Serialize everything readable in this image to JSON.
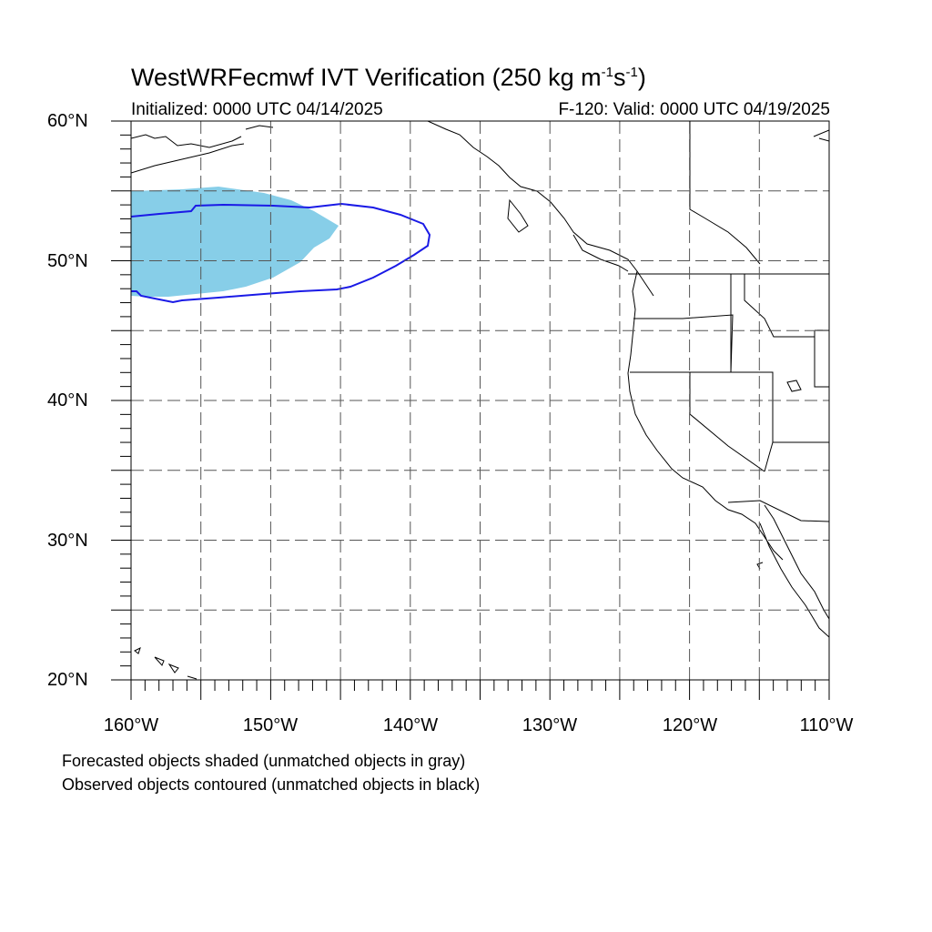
{
  "title": {
    "prefix": "WestWRFecmwf IVT Verification (250 kg m",
    "exp1": "-1",
    "mid": "s",
    "exp2": "-1",
    "suffix": ")"
  },
  "init_text": "Initialized: 0000 UTC 04/14/2025",
  "valid_text": "F-120: Valid: 0000 UTC 04/19/2025",
  "y_tick_labels": [
    "60°N",
    "50°N",
    "40°N",
    "30°N",
    "20°N"
  ],
  "x_tick_labels": [
    "160°W",
    "150°W",
    "140°W",
    "130°W",
    "120°W",
    "110°W"
  ],
  "footnotes": [
    "Forecasted objects shaded (unmatched objects in gray)",
    "Observed objects contoured (unmatched objects in black)"
  ],
  "map": {
    "lon_range": [
      -160,
      -110
    ],
    "lat_range": [
      20,
      60
    ],
    "grid_spacing_deg": 5,
    "grid": "dashed",
    "forecast_fill_color": "#87CEE8",
    "observed_contour_color": "#1A1AE6",
    "coastline_color": "#000000"
  }
}
